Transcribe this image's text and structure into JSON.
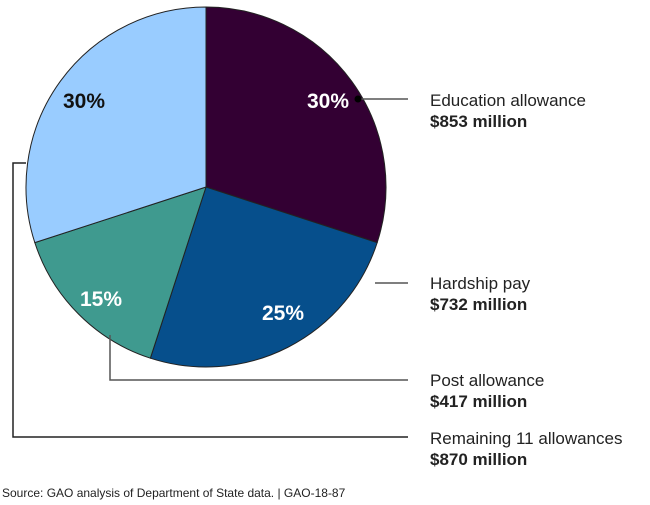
{
  "chart_data": {
    "type": "pie",
    "title": "",
    "slices": [
      {
        "name": "Education allowance",
        "amount": "$853 million",
        "value": 30,
        "pct_label": "30%",
        "color": "#330033",
        "text_color": "#ffffff"
      },
      {
        "name": "Hardship pay",
        "amount": "$732 million",
        "value": 25,
        "pct_label": "25%",
        "color": "#064f8c",
        "text_color": "#ffffff"
      },
      {
        "name": "Post allowance",
        "amount": "$417 million",
        "value": 15,
        "pct_label": "15%",
        "color": "#3f9a8f",
        "text_color": "#ffffff"
      },
      {
        "name": "Remaining 11 allowances",
        "amount": "$870 million",
        "value": 30,
        "pct_label": "30%",
        "color": "#99ccff",
        "text_color": "#111111"
      }
    ]
  },
  "footer": {
    "source": "Source: GAO analysis of Department of State data.  |  GAO-18-87"
  }
}
